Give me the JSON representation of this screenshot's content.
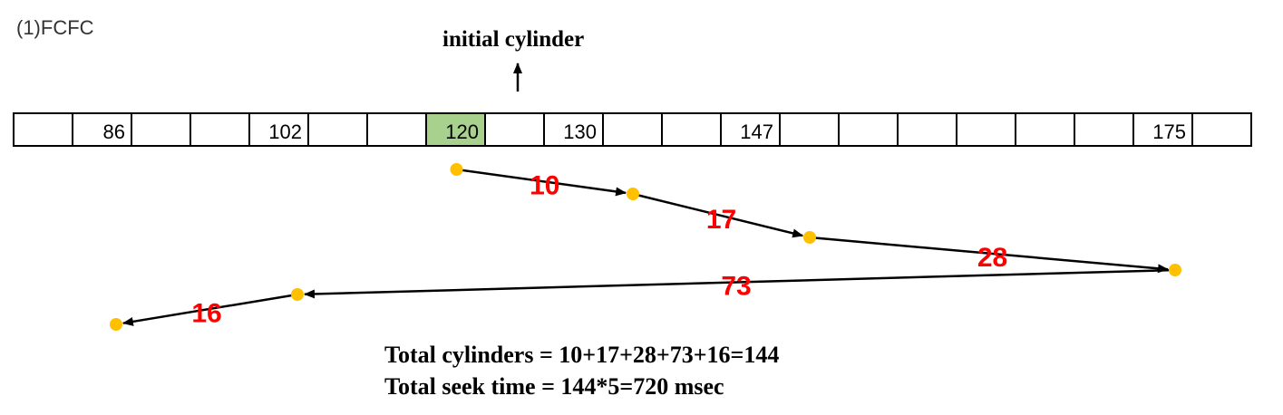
{
  "title": "(1)FCFC",
  "initial_label": "initial cylinder",
  "cylinder_cells": [
    "",
    "86",
    "",
    "",
    "102",
    "",
    "",
    "120",
    "",
    "130",
    "",
    "",
    "147",
    "",
    "",
    "",
    "",
    "",
    "",
    "175",
    ""
  ],
  "initial_cell_index": 7,
  "highlight_color": "#a9d18e",
  "point_color": "#ffc000",
  "seek_label_color": "#ff0000",
  "seek_sequence": [
    {
      "from": 120,
      "to": 130,
      "distance": "10"
    },
    {
      "from": 130,
      "to": 147,
      "distance": "17"
    },
    {
      "from": 147,
      "to": 175,
      "distance": "28"
    },
    {
      "from": 175,
      "to": 102,
      "distance": "73"
    },
    {
      "from": 102,
      "to": 86,
      "distance": "16"
    }
  ],
  "summary": {
    "line1": "Total cylinders = 10+17+28+73+16=144",
    "line2": "Total seek time = 144*5=720 msec"
  }
}
